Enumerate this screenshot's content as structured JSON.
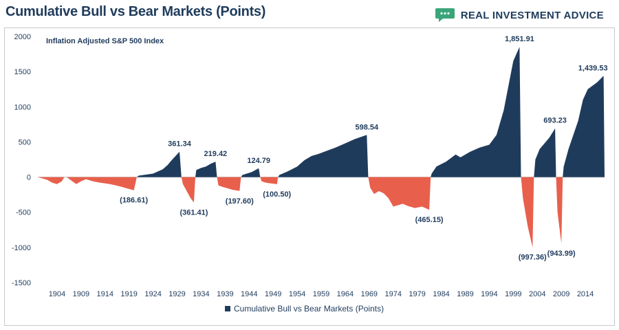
{
  "header": {
    "title": "Cumulative Bull vs Bear Markets (Points)",
    "brand": "REAL INVESTMENT ADVICE",
    "brand_icon": "chat-bubble-icon",
    "brand_color": "#3aa57a"
  },
  "colors": {
    "bull": "#1f3b5c",
    "bear": "#e8604c",
    "text": "#1f3b5c",
    "grid": "#e6e6e6"
  },
  "chart_data": {
    "type": "area",
    "subtitle": "Inflation Adjusted S&P 500 Index",
    "ylim": [
      -1500,
      2000
    ],
    "yticks": [
      2000,
      1500,
      1000,
      500,
      0,
      -500,
      -1000,
      -1500
    ],
    "xlim": [
      1900,
      2018
    ],
    "xticks": [
      1904,
      1909,
      1914,
      1919,
      1924,
      1929,
      1934,
      1939,
      1944,
      1949,
      1954,
      1959,
      1964,
      1969,
      1974,
      1979,
      1984,
      1989,
      1994,
      1999,
      2004,
      2009,
      2014
    ],
    "legend": {
      "label": "Cumulative Bull vs Bear Markets (Points)",
      "position": "bottom"
    },
    "series": [
      {
        "name": "Cumulative Bull vs Bear Markets (Points)",
        "points": [
          [
            1900.0,
            0
          ],
          [
            1901.0,
            -20
          ],
          [
            1902.0,
            -40
          ],
          [
            1903.0,
            -80
          ],
          [
            1904.0,
            -100
          ],
          [
            1905.0,
            -60
          ],
          [
            1905.5,
            0
          ],
          [
            1906.0,
            0
          ],
          [
            1907.0,
            -50
          ],
          [
            1908.0,
            -100
          ],
          [
            1909.0,
            -60
          ],
          [
            1910.0,
            -30
          ],
          [
            1911.5,
            -60
          ],
          [
            1913.0,
            -80
          ],
          [
            1915.0,
            -100
          ],
          [
            1917.0,
            -130
          ],
          [
            1918.5,
            -160
          ],
          [
            1920.0,
            -186.61
          ],
          [
            1920.6,
            0
          ],
          [
            1921.0,
            20
          ],
          [
            1922.0,
            30
          ],
          [
            1923.0,
            40
          ],
          [
            1924.0,
            50
          ],
          [
            1925.0,
            80
          ],
          [
            1926.0,
            110
          ],
          [
            1927.0,
            170
          ],
          [
            1928.0,
            250
          ],
          [
            1929.5,
            361.34
          ],
          [
            1929.9,
            0
          ],
          [
            1930.2,
            -100
          ],
          [
            1931.0,
            -200
          ],
          [
            1931.8,
            -300
          ],
          [
            1932.5,
            -361.41
          ],
          [
            1932.8,
            0
          ],
          [
            1933.0,
            100
          ],
          [
            1934.0,
            130
          ],
          [
            1935.0,
            150
          ],
          [
            1936.0,
            190
          ],
          [
            1937.0,
            219.42
          ],
          [
            1937.3,
            0
          ],
          [
            1937.6,
            -120
          ],
          [
            1938.5,
            -140
          ],
          [
            1939.5,
            -160
          ],
          [
            1940.5,
            -180
          ],
          [
            1942.0,
            -197.6
          ],
          [
            1942.3,
            0
          ],
          [
            1942.6,
            30
          ],
          [
            1943.5,
            50
          ],
          [
            1944.5,
            70
          ],
          [
            1946.0,
            124.79
          ],
          [
            1946.3,
            0
          ],
          [
            1946.6,
            -60
          ],
          [
            1947.5,
            -80
          ],
          [
            1948.5,
            -90
          ],
          [
            1949.8,
            -100.5
          ],
          [
            1950.0,
            0
          ],
          [
            1950.3,
            30
          ],
          [
            1952.0,
            80
          ],
          [
            1954.0,
            150
          ],
          [
            1955.5,
            240
          ],
          [
            1957.0,
            300
          ],
          [
            1958.5,
            330
          ],
          [
            1960.0,
            370
          ],
          [
            1962.0,
            420
          ],
          [
            1964.0,
            480
          ],
          [
            1966.0,
            540
          ],
          [
            1968.5,
            598.54
          ],
          [
            1968.8,
            0
          ],
          [
            1969.2,
            -150
          ],
          [
            1970.0,
            -240
          ],
          [
            1971.0,
            -200
          ],
          [
            1972.0,
            -230
          ],
          [
            1973.0,
            -300
          ],
          [
            1974.0,
            -420
          ],
          [
            1975.0,
            -400
          ],
          [
            1976.0,
            -380
          ],
          [
            1977.0,
            -410
          ],
          [
            1978.5,
            -440
          ],
          [
            1980.0,
            -420
          ],
          [
            1981.5,
            -465.15
          ],
          [
            1981.8,
            0
          ],
          [
            1982.0,
            50
          ],
          [
            1983.0,
            150
          ],
          [
            1985.0,
            220
          ],
          [
            1987.0,
            320
          ],
          [
            1988.0,
            280
          ],
          [
            1990.0,
            360
          ],
          [
            1992.0,
            420
          ],
          [
            1994.0,
            460
          ],
          [
            1995.5,
            600
          ],
          [
            1997.0,
            950
          ],
          [
            1998.0,
            1300
          ],
          [
            1999.0,
            1650
          ],
          [
            2000.3,
            1851.91
          ],
          [
            2000.6,
            0
          ],
          [
            2001.0,
            -300
          ],
          [
            2002.0,
            -700
          ],
          [
            2003.0,
            -997.36
          ],
          [
            2003.3,
            0
          ],
          [
            2003.6,
            250
          ],
          [
            2004.5,
            400
          ],
          [
            2005.5,
            480
          ],
          [
            2006.5,
            560
          ],
          [
            2007.7,
            693.23
          ],
          [
            2007.9,
            0
          ],
          [
            2008.2,
            -500
          ],
          [
            2009.0,
            -943.99
          ],
          [
            2009.3,
            0
          ],
          [
            2009.5,
            150
          ],
          [
            2010.5,
            400
          ],
          [
            2011.5,
            600
          ],
          [
            2012.5,
            800
          ],
          [
            2013.5,
            1100
          ],
          [
            2014.5,
            1250
          ],
          [
            2015.5,
            1300
          ],
          [
            2016.5,
            1350
          ],
          [
            2017.8,
            1439.53
          ],
          [
            2018.0,
            0
          ]
        ]
      }
    ],
    "annotations": [
      {
        "x": 1929.5,
        "y": 361.34,
        "label": "361.34"
      },
      {
        "x": 1937.0,
        "y": 219.42,
        "label": "219.42"
      },
      {
        "x": 1946.0,
        "y": 124.79,
        "label": "124.79"
      },
      {
        "x": 1968.5,
        "y": 598.54,
        "label": "598.54"
      },
      {
        "x": 2000.3,
        "y": 1851.91,
        "label": "1,851.91"
      },
      {
        "x": 2007.7,
        "y": 693.23,
        "label": "693.23"
      },
      {
        "x": 2017.8,
        "y": 1439.53,
        "label": "1,439.53"
      },
      {
        "x": 1920.0,
        "y": -186.61,
        "label": "(186.61)"
      },
      {
        "x": 1932.5,
        "y": -361.41,
        "label": "(361.41)"
      },
      {
        "x": 1942.0,
        "y": -197.6,
        "label": "(197.60)"
      },
      {
        "x": 1949.8,
        "y": -100.5,
        "label": "(100.50)"
      },
      {
        "x": 1981.5,
        "y": -465.15,
        "label": "(465.15)"
      },
      {
        "x": 2003.0,
        "y": -997.36,
        "label": "(997.36)"
      },
      {
        "x": 2009.0,
        "y": -943.99,
        "label": "(943.99)"
      }
    ]
  }
}
